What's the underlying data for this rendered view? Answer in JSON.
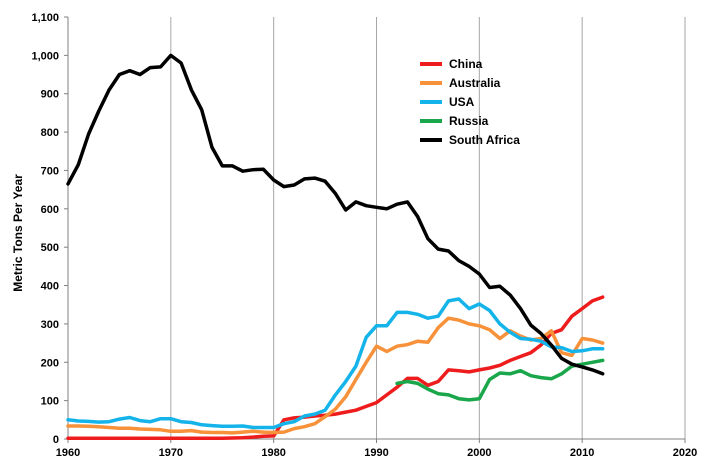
{
  "chart_data": {
    "type": "line",
    "title": "",
    "xlabel": "",
    "ylabel": "Metric Tons Per Year",
    "xlim": [
      1960,
      2020
    ],
    "ylim": [
      0,
      1100
    ],
    "x_ticks": [
      1960,
      1970,
      1980,
      1990,
      2000,
      2010,
      2020
    ],
    "y_ticks": [
      0,
      100,
      200,
      300,
      400,
      500,
      600,
      700,
      800,
      900,
      1000,
      1100
    ],
    "x_tick_labels": [
      "1960",
      "1970",
      "1980",
      "1990",
      "2000",
      "2010",
      "2020"
    ],
    "y_tick_labels": [
      "0",
      "100",
      "200",
      "300",
      "400",
      "500",
      "600",
      "700",
      "800",
      "900",
      "1,000",
      "1,100"
    ],
    "grid": "vertical",
    "legend_position": "top-right",
    "series": [
      {
        "name": "China",
        "color": "#ee1c1c",
        "x": [
          1960,
          1965,
          1970,
          1975,
          1977,
          1978,
          1979,
          1980,
          1981,
          1982,
          1983,
          1984,
          1985,
          1986,
          1987,
          1988,
          1989,
          1990,
          1991,
          1992,
          1993,
          1994,
          1995,
          1996,
          1997,
          1998,
          1999,
          2000,
          2001,
          2002,
          2003,
          2004,
          2005,
          2006,
          2007,
          2008,
          2009,
          2010,
          2011,
          2012
        ],
        "y": [
          2,
          2,
          2,
          2,
          3,
          5,
          7,
          8,
          50,
          55,
          57,
          60,
          62,
          65,
          70,
          75,
          85,
          95,
          115,
          135,
          158,
          158,
          140,
          150,
          180,
          178,
          175,
          180,
          185,
          192,
          205,
          215,
          225,
          245,
          275,
          285,
          320,
          340,
          360,
          370
        ]
      },
      {
        "name": "Australia",
        "color": "#f7923a",
        "x": [
          1960,
          1961,
          1962,
          1963,
          1964,
          1965,
          1966,
          1967,
          1968,
          1969,
          1970,
          1971,
          1972,
          1973,
          1974,
          1975,
          1976,
          1977,
          1978,
          1979,
          1980,
          1981,
          1982,
          1983,
          1984,
          1985,
          1986,
          1987,
          1988,
          1989,
          1990,
          1991,
          1992,
          1993,
          1994,
          1995,
          1996,
          1997,
          1998,
          1999,
          2000,
          2001,
          2002,
          2003,
          2004,
          2005,
          2006,
          2007,
          2008,
          2009,
          2010,
          2011,
          2012
        ],
        "y": [
          34,
          34,
          33,
          32,
          30,
          28,
          28,
          26,
          25,
          24,
          20,
          20,
          22,
          18,
          17,
          17,
          16,
          18,
          20,
          18,
          17,
          18,
          27,
          32,
          40,
          58,
          78,
          110,
          155,
          200,
          242,
          228,
          242,
          246,
          255,
          252,
          290,
          315,
          310,
          300,
          295,
          285,
          262,
          282,
          268,
          258,
          262,
          282,
          225,
          218,
          262,
          258,
          250
        ]
      },
      {
        "name": "USA",
        "color": "#14b4ea",
        "x": [
          1960,
          1961,
          1962,
          1963,
          1964,
          1965,
          1966,
          1967,
          1968,
          1969,
          1970,
          1971,
          1972,
          1973,
          1974,
          1975,
          1976,
          1977,
          1978,
          1979,
          1980,
          1981,
          1982,
          1983,
          1984,
          1985,
          1986,
          1987,
          1988,
          1989,
          1990,
          1991,
          1992,
          1993,
          1994,
          1995,
          1996,
          1997,
          1998,
          1999,
          2000,
          2001,
          2002,
          2003,
          2004,
          2005,
          2006,
          2007,
          2008,
          2009,
          2010,
          2011,
          2012
        ],
        "y": [
          50,
          47,
          46,
          44,
          45,
          52,
          56,
          48,
          45,
          53,
          53,
          45,
          43,
          37,
          35,
          33,
          33,
          34,
          30,
          30,
          30,
          40,
          45,
          60,
          65,
          75,
          115,
          150,
          190,
          265,
          295,
          295,
          330,
          330,
          325,
          315,
          320,
          360,
          365,
          340,
          352,
          335,
          300,
          278,
          262,
          260,
          255,
          240,
          238,
          228,
          230,
          235,
          235
        ]
      },
      {
        "name": "Russia",
        "color": "#1aa64a",
        "x": [
          1992,
          1993,
          1994,
          1995,
          1996,
          1997,
          1998,
          1999,
          2000,
          2001,
          2002,
          2003,
          2004,
          2005,
          2006,
          2007,
          2008,
          2009,
          2010,
          2011,
          2012
        ],
        "y": [
          145,
          150,
          145,
          130,
          118,
          115,
          105,
          102,
          105,
          155,
          172,
          170,
          178,
          165,
          160,
          157,
          170,
          190,
          195,
          200,
          205
        ]
      },
      {
        "name": "South Africa",
        "color": "#000000",
        "x": [
          1960,
          1961,
          1962,
          1963,
          1964,
          1965,
          1966,
          1967,
          1968,
          1969,
          1970,
          1971,
          1972,
          1973,
          1974,
          1975,
          1976,
          1977,
          1978,
          1979,
          1980,
          1981,
          1982,
          1983,
          1984,
          1985,
          1986,
          1987,
          1988,
          1989,
          1990,
          1991,
          1992,
          1993,
          1994,
          1995,
          1996,
          1997,
          1998,
          1999,
          2000,
          2001,
          2002,
          2003,
          2004,
          2005,
          2006,
          2007,
          2008,
          2009,
          2010,
          2011,
          2012
        ],
        "y": [
          665,
          715,
          795,
          855,
          910,
          950,
          960,
          950,
          968,
          970,
          1000,
          980,
          910,
          858,
          760,
          712,
          712,
          698,
          702,
          703,
          675,
          658,
          662,
          678,
          680,
          672,
          640,
          597,
          618,
          608,
          604,
          600,
          612,
          618,
          580,
          522,
          495,
          490,
          465,
          450,
          430,
          395,
          398,
          375,
          340,
          297,
          275,
          245,
          210,
          195,
          188,
          180,
          170
        ]
      }
    ]
  }
}
